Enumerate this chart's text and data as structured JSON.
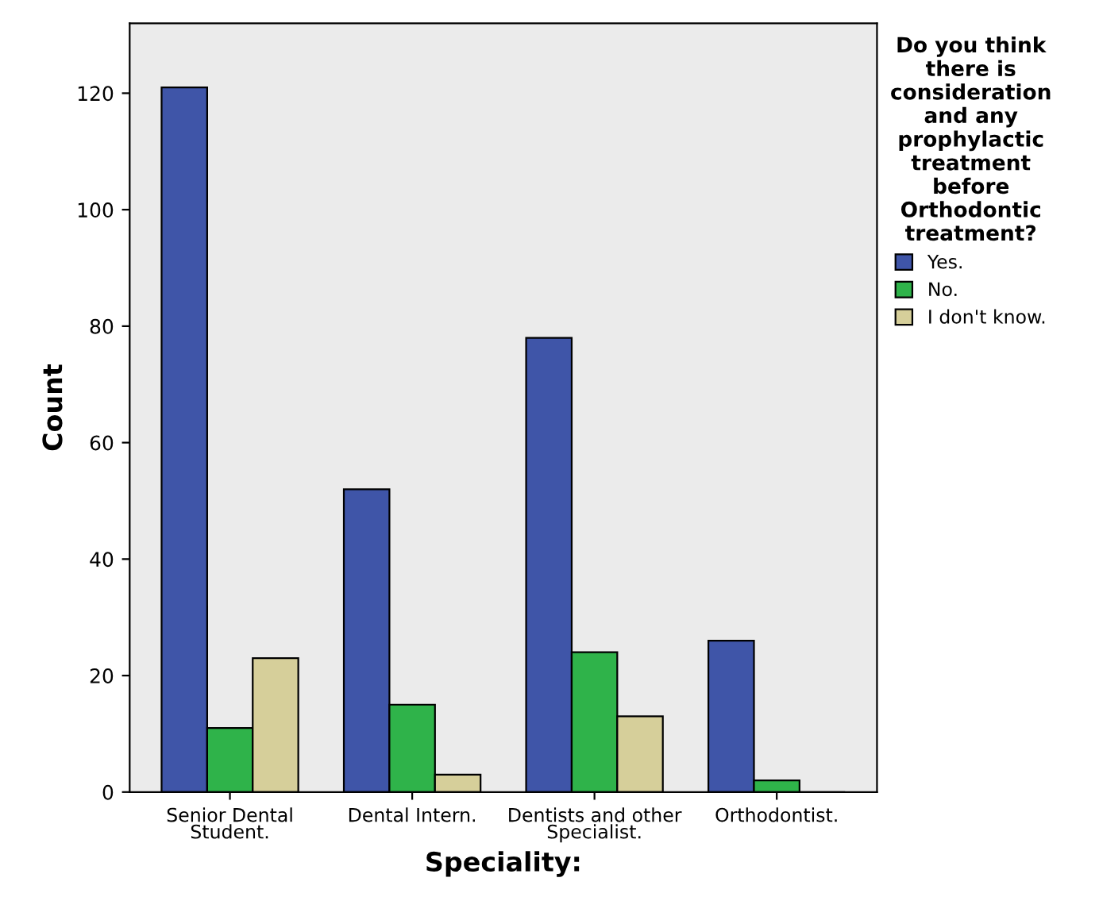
{
  "chart_data": {
    "type": "bar",
    "xlabel": "Speciality:",
    "ylabel": "Count",
    "legend_title": "Do you think\nthere is\nconsideration\nand any\nprophylactic\ntreatment\nbefore\nOrthodontic\ntreatment?",
    "categories": [
      "Senior Dental\nStudent.",
      "Dental Intern.",
      "Dentists and other\nSpecialist.",
      "Orthodontist."
    ],
    "series": [
      {
        "name": "Yes.",
        "color": "#3f55a8",
        "values": [
          121,
          52,
          78,
          26
        ]
      },
      {
        "name": "No.",
        "color": "#2fb34a",
        "values": [
          11,
          15,
          24,
          2
        ]
      },
      {
        "name": "I don't know.",
        "color": "#d6cf9a",
        "values": [
          23,
          3,
          13,
          0
        ]
      }
    ],
    "ylim": [
      0,
      132
    ],
    "yticks": [
      0,
      20,
      40,
      60,
      80,
      100,
      120
    ],
    "grid": false,
    "legend": "top right"
  }
}
